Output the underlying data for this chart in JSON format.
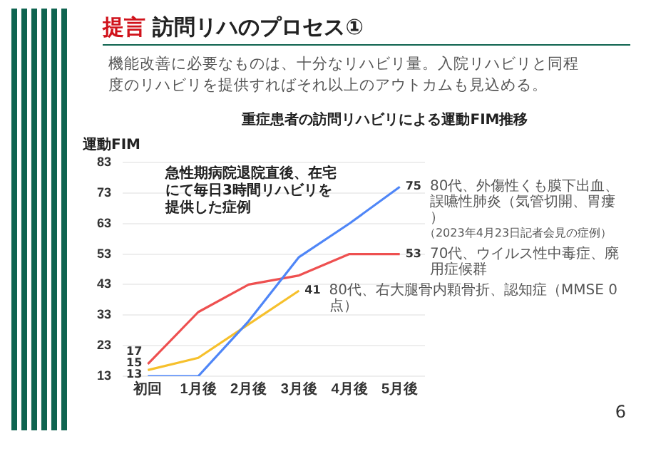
{
  "chart_data": {
    "type": "line",
    "title": "提言 訪問リハのプロセス①",
    "subtitle": "機能改善に必要なものは、十分なリハビリ量。入院リハビリと同程度のリハビリを提供すればそれ以上のアウトカムも見込める。",
    "ylabel": "運動FIM",
    "categories": [
      "初回",
      "1月後",
      "2月後",
      "3月後",
      "4月後",
      "5月後"
    ],
    "series": [
      {
        "name": "80代、外傷性くも膜下出血、誤嚥性肺炎（気管切開、胃瘻）",
        "color": "#4f86f7",
        "values": [
          13,
          13,
          31,
          52,
          63,
          75
        ],
        "value_labels": [
          "13",
          null,
          null,
          null,
          null,
          "75"
        ]
      },
      {
        "name": "70代、ウイルス性中毒症、廃用症候群",
        "color": "#ee5050",
        "values": [
          17,
          34,
          43,
          46,
          53,
          53
        ],
        "value_labels": [
          "17",
          null,
          null,
          null,
          null,
          "53"
        ]
      },
      {
        "name": "80代、右大腿骨内顆骨折、認知症（MMSE 0点）",
        "color": "#f6c02c",
        "values": [
          15,
          19,
          30,
          41,
          null,
          null
        ],
        "value_labels": [
          "15",
          null,
          null,
          "41",
          null,
          null
        ]
      }
    ],
    "ylim": [
      13,
      83
    ],
    "yticks": [
      13,
      23,
      33,
      43,
      53,
      63,
      73,
      83
    ],
    "grid": "y",
    "marker": "none",
    "line_style": "solid",
    "annotations": [
      "重症患者の訪問リハビリによる運動FIM推移",
      "急性期病院退院直後、在宅にて毎日3時間リハビリを提供した症例",
      "（2023年4月23日記者会見の症例）",
      "6"
    ]
  }
}
